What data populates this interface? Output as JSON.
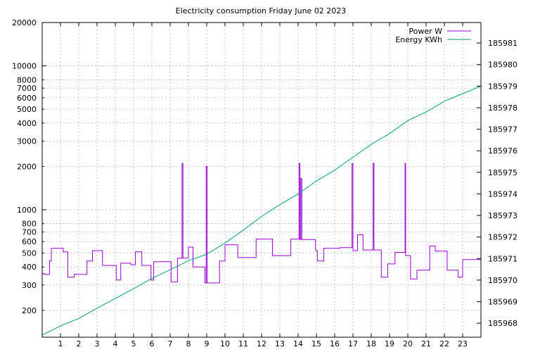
{
  "chart_data": {
    "type": "line",
    "title": "Electricity consumption Friday June 02 2023",
    "xlabel": "",
    "ylabel": "",
    "x_ticks": [
      1,
      2,
      3,
      4,
      5,
      6,
      7,
      8,
      9,
      10,
      11,
      12,
      13,
      14,
      15,
      16,
      17,
      18,
      19,
      20,
      21,
      22,
      23
    ],
    "xlim": [
      0,
      24
    ],
    "y_left": {
      "scale": "log",
      "range": [
        130,
        20000
      ],
      "major_ticks": [
        {
          "value": 1000,
          "label": "1000"
        },
        {
          "value": 10000,
          "label": "10000"
        },
        {
          "value": 20000,
          "label": "20000"
        }
      ],
      "minor_ticks": [
        {
          "value": 200,
          "label": "200"
        },
        {
          "value": 300,
          "label": "300"
        },
        {
          "value": 400,
          "label": "400"
        },
        {
          "value": 500,
          "label": "500"
        },
        {
          "value": 600,
          "label": "600"
        },
        {
          "value": 700,
          "label": "700"
        },
        {
          "value": 800,
          "label": "800"
        },
        {
          "value": 2000,
          "label": "2000"
        },
        {
          "value": 3000,
          "label": "3000"
        },
        {
          "value": 4000,
          "label": "4000"
        },
        {
          "value": 5000,
          "label": "5000"
        },
        {
          "value": 6000,
          "label": "6000"
        },
        {
          "value": 7000,
          "label": "7000"
        },
        {
          "value": 8000,
          "label": "8000"
        }
      ]
    },
    "y_right": {
      "scale": "linear",
      "range": [
        185967.35,
        185981.95
      ],
      "ticks": [
        185968,
        185969,
        185970,
        185971,
        185972,
        185973,
        185974,
        185975,
        185976,
        185977,
        185978,
        185979,
        185980,
        185981
      ]
    },
    "grid": true,
    "legend": "top-right",
    "series": [
      {
        "name": "Power W",
        "axis": "left",
        "color": "#9400d3",
        "style": "steps",
        "points": [
          [
            0,
            360
          ],
          [
            0.1,
            355
          ],
          [
            0.4,
            440
          ],
          [
            0.5,
            540
          ],
          [
            1.15,
            510
          ],
          [
            1.4,
            340
          ],
          [
            1.75,
            355
          ],
          [
            2.45,
            440
          ],
          [
            2.75,
            520
          ],
          [
            3.3,
            410
          ],
          [
            4.05,
            325
          ],
          [
            4.3,
            425
          ],
          [
            4.85,
            415
          ],
          [
            5.1,
            510
          ],
          [
            5.45,
            410
          ],
          [
            5.95,
            325
          ],
          [
            6.1,
            435
          ],
          [
            7.05,
            315
          ],
          [
            7.4,
            460
          ],
          [
            7.65,
            2100
          ],
          [
            7.7,
            460
          ],
          [
            8.0,
            550
          ],
          [
            8.25,
            400
          ],
          [
            8.9,
            310
          ],
          [
            8.97,
            2000
          ],
          [
            9.02,
            310
          ],
          [
            9.7,
            440
          ],
          [
            10.0,
            570
          ],
          [
            10.7,
            465
          ],
          [
            11.7,
            625
          ],
          [
            12.6,
            480
          ],
          [
            13.6,
            625
          ],
          [
            14.05,
            2100
          ],
          [
            14.1,
            620
          ],
          [
            14.15,
            1650
          ],
          [
            14.2,
            620
          ],
          [
            14.95,
            520
          ],
          [
            15.05,
            440
          ],
          [
            15.4,
            540
          ],
          [
            16.3,
            545
          ],
          [
            16.95,
            2100
          ],
          [
            17.0,
            520
          ],
          [
            17.25,
            670
          ],
          [
            17.55,
            525
          ],
          [
            18.1,
            2100
          ],
          [
            18.15,
            525
          ],
          [
            18.55,
            340
          ],
          [
            18.9,
            420
          ],
          [
            19.3,
            505
          ],
          [
            19.85,
            2100
          ],
          [
            19.88,
            480
          ],
          [
            20.15,
            330
          ],
          [
            20.5,
            380
          ],
          [
            21.2,
            560
          ],
          [
            21.5,
            515
          ],
          [
            22.15,
            380
          ],
          [
            22.75,
            340
          ],
          [
            23.0,
            450
          ],
          [
            24.0,
            450
          ]
        ]
      },
      {
        "name": "Energy KWh",
        "axis": "right",
        "color": "#009e73",
        "style": "line",
        "points": [
          [
            0,
            185967.45
          ],
          [
            1,
            185967.87
          ],
          [
            2,
            185968.22
          ],
          [
            3,
            185968.7
          ],
          [
            4,
            185969.15
          ],
          [
            5,
            185969.6
          ],
          [
            6,
            185970.08
          ],
          [
            7,
            185970.48
          ],
          [
            8,
            185970.9
          ],
          [
            9,
            185971.2
          ],
          [
            10,
            185971.72
          ],
          [
            11,
            185972.32
          ],
          [
            12,
            185972.95
          ],
          [
            13,
            185973.5
          ],
          [
            14,
            185974.0
          ],
          [
            15,
            185974.6
          ],
          [
            16,
            185975.1
          ],
          [
            17,
            185975.7
          ],
          [
            18,
            185976.3
          ],
          [
            19,
            185976.8
          ],
          [
            20,
            185977.4
          ],
          [
            21,
            185977.8
          ],
          [
            22,
            185978.3
          ],
          [
            23,
            185978.65
          ],
          [
            24,
            185979.0
          ]
        ]
      }
    ]
  }
}
